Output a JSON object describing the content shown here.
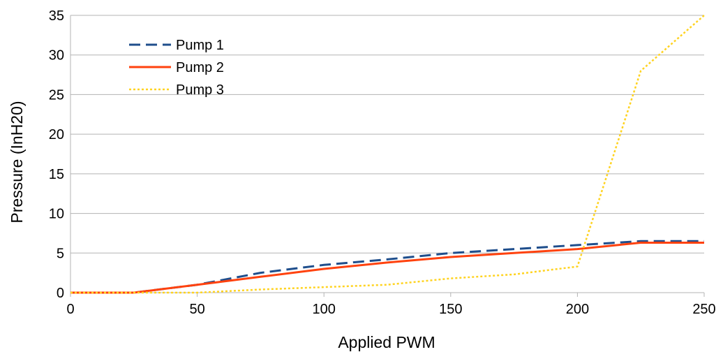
{
  "chart_data": {
    "type": "line",
    "title": "",
    "xlabel": "Applied PWM",
    "ylabel": "Pressure (InH20)",
    "xlim": [
      0,
      250
    ],
    "ylim": [
      0,
      35
    ],
    "x_ticks": [
      0,
      50,
      100,
      150,
      200,
      250
    ],
    "y_ticks": [
      0,
      5,
      10,
      15,
      20,
      25,
      30,
      35
    ],
    "grid": "horizontal",
    "legend_position": "top-left",
    "x": [
      0,
      25,
      50,
      75,
      100,
      125,
      150,
      175,
      200,
      225,
      250
    ],
    "series": [
      {
        "name": "Pump 1",
        "color": "#1f4e8c",
        "style": "dashed",
        "values": [
          0,
          0,
          1.0,
          2.5,
          3.5,
          4.2,
          5.0,
          5.5,
          6.0,
          6.5,
          6.5
        ]
      },
      {
        "name": "Pump 2",
        "color": "#ff420e",
        "style": "solid",
        "values": [
          0,
          0,
          1.0,
          2.0,
          3.0,
          3.8,
          4.5,
          5.0,
          5.5,
          6.3,
          6.3
        ]
      },
      {
        "name": "Pump 3",
        "color": "#ffd320",
        "style": "dotted",
        "values": [
          0,
          0,
          0,
          0.4,
          0.7,
          1.0,
          1.8,
          2.3,
          3.3,
          28.0,
          35.0
        ]
      }
    ]
  }
}
